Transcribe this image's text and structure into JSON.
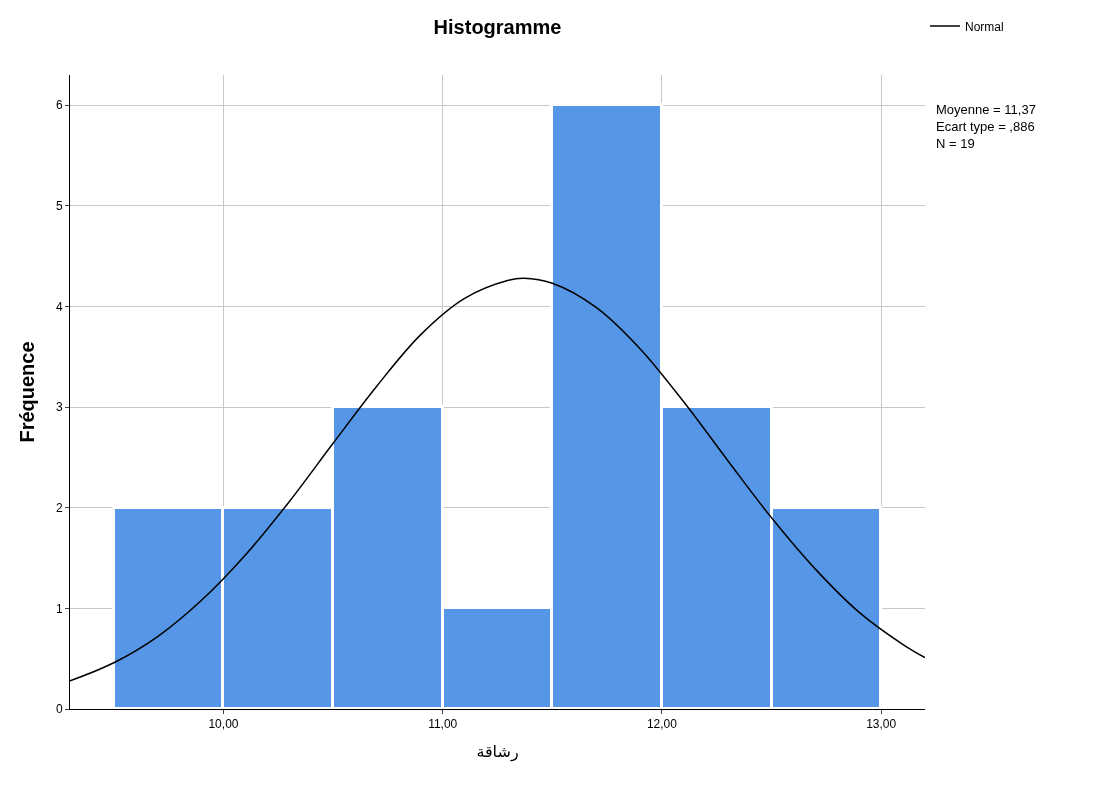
{
  "chart_data": {
    "type": "histogram",
    "title": "Histogramme",
    "xlabel": "رشاقة",
    "ylabel": "Fréquence",
    "bins": [
      9.5,
      10.0,
      10.5,
      11.0,
      11.5,
      12.0,
      12.5,
      13.0
    ],
    "values": [
      2,
      2,
      3,
      1,
      6,
      3,
      2
    ],
    "color": "#5596e6",
    "series": [
      {
        "name": "Normal",
        "type": "line",
        "color": "#000000",
        "x": [
          9.3,
          9.5,
          9.7,
          9.9,
          10.1,
          10.3,
          10.5,
          10.7,
          10.9,
          11.1,
          11.3,
          11.37,
          11.5,
          11.7,
          11.9,
          12.1,
          12.3,
          12.5,
          12.7,
          12.9,
          13.1,
          13.2
        ],
        "values": [
          0.28,
          0.46,
          0.72,
          1.08,
          1.53,
          2.06,
          2.64,
          3.21,
          3.72,
          4.08,
          4.26,
          4.28,
          4.23,
          3.99,
          3.58,
          3.05,
          2.47,
          1.9,
          1.39,
          0.96,
          0.64,
          0.51
        ]
      }
    ],
    "xlim": [
      9.3,
      13.2
    ],
    "xticks": [
      {
        "value": 10,
        "label": "10,00"
      },
      {
        "value": 11,
        "label": "11,00"
      },
      {
        "value": 12,
        "label": "12,00"
      },
      {
        "value": 13,
        "label": "13,00"
      }
    ],
    "ylim": [
      0,
      6.3
    ],
    "yticks": [
      0,
      1,
      2,
      3,
      4,
      5,
      6
    ],
    "grid": true,
    "legend": "top right",
    "annotations": [
      "Moyenne = 11,37",
      "Ecart type = ,886",
      "N = 19"
    ]
  }
}
